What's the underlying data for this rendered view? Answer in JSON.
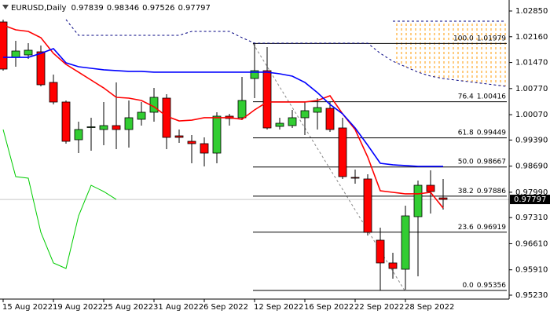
{
  "chart_data": {
    "type": "candlestick",
    "title": "EURUSD,Daily",
    "categories": [
      "15 Aug 2022",
      null,
      null,
      null,
      "19 Aug 2022",
      null,
      null,
      null,
      "25 Aug 2022",
      null,
      null,
      null,
      "31 Aug 2022",
      null,
      null,
      null,
      "6 Sep 2022",
      null,
      null,
      null,
      "12 Sep 2022",
      null,
      null,
      null,
      "16 Sep 2022",
      null,
      null,
      null,
      "22 Sep 2022",
      null,
      null,
      null,
      "28 Sep 2022",
      null,
      null,
      null,
      null,
      null,
      null,
      null,
      null
    ],
    "open": [
      1.02556,
      1.01608,
      1.01672,
      1.01756,
      1.00935,
      1.00409,
      0.99398,
      0.99735,
      0.99672,
      0.99777,
      0.99672,
      0.99946,
      1.00135,
      1.00514,
      0.99503,
      0.99356,
      0.99293,
      0.9904,
      1.0003,
      0.99988,
      1.0104,
      1.0125,
      0.99756,
      0.99777,
      0.99988,
      1.00135,
      1.0024,
      0.99714,
      0.98388,
      0.98346,
      0.96704,
      0.96094,
      0.95925,
      0.97335,
      0.98177,
      0.97839,
      null,
      null,
      null,
      null,
      null
    ],
    "high": [
      1.0262,
      1.0205,
      1.01987,
      1.01924,
      1.01145,
      1.00451,
      0.99882,
      0.99988,
      1.00409,
      1.00935,
      1.00451,
      1.00409,
      1.00787,
      1.00619,
      0.99672,
      0.99524,
      0.99461,
      1.00135,
      1.00093,
      1.01082,
      1.01987,
      1.01882,
      0.99988,
      1.00198,
      1.00409,
      1.00514,
      1.00409,
      0.99988,
      0.98599,
      0.98472,
      0.97041,
      0.96367,
      0.9763,
      0.98304,
      0.98578,
      0.98346,
      null,
      null,
      null,
      null,
      null
    ],
    "low": [
      1.0125,
      1.01356,
      1.01566,
      1.0083,
      1.00345,
      0.99293,
      0.9904,
      0.99103,
      0.99251,
      0.99146,
      0.99188,
      0.99777,
      0.99882,
      0.99146,
      0.99314,
      0.98767,
      0.98683,
      0.98767,
      0.99777,
      0.99925,
      1.00514,
      0.99672,
      0.99672,
      0.99714,
      0.99524,
      0.99672,
      0.99609,
      0.98346,
      0.9822,
      0.9683,
      0.95356,
      0.95672,
      0.95378,
      0.95735,
      0.9742,
      0.97526,
      null,
      null,
      null,
      null,
      null
    ],
    "close": [
      1.01293,
      1.01777,
      1.01798,
      1.00872,
      1.00409,
      0.99356,
      0.99672,
      0.99745,
      0.99777,
      0.99672,
      0.99988,
      1.00135,
      1.00535,
      0.99461,
      0.99461,
      0.99293,
      0.9904,
      1.0003,
      0.99967,
      1.00451,
      1.0125,
      0.99714,
      0.9984,
      0.99988,
      1.00177,
      1.00261,
      0.99672,
      0.98409,
      0.98367,
      0.96915,
      0.96094,
      0.95946,
      0.97356,
      0.98177,
      0.98009,
      0.97797,
      null,
      null,
      null,
      null,
      null
    ],
    "up_color": "#32cd32",
    "down_color": "#ff0000",
    "lines": [
      {
        "color": "#ff0000",
        "width": 1.6,
        "dash": null,
        "values": [
          1.02471,
          1.02345,
          1.02303,
          1.02135,
          1.01714,
          1.01419,
          1.01209,
          1.00998,
          1.00787,
          1.00535,
          1.00514,
          1.00451,
          1.00282,
          1.0003,
          0.99903,
          0.99924,
          0.99988,
          0.99988,
          0.99988,
          0.99946,
          1.00198,
          1.00409,
          1.00409,
          1.00409,
          1.00409,
          1.00451,
          1.00577,
          1.00093,
          0.99672,
          0.98935,
          0.9803,
          0.97988,
          0.97946,
          0.97946,
          0.97988,
          0.97567,
          null,
          null,
          null,
          null,
          null
        ]
      },
      {
        "color": "#0000ff",
        "width": 1.6,
        "dash": null,
        "values": [
          1.01608,
          1.01608,
          1.01608,
          1.01714,
          1.0184,
          1.01461,
          1.01356,
          1.01314,
          1.01272,
          1.01251,
          1.0123,
          1.0123,
          1.01209,
          1.01209,
          1.01209,
          1.01209,
          1.01209,
          1.01209,
          1.01209,
          1.01209,
          1.01209,
          1.01209,
          1.01166,
          1.01103,
          1.00935,
          1.00661,
          1.00345,
          1.00093,
          0.99714,
          0.99251,
          0.98767,
          0.98725,
          0.98704,
          0.98683,
          0.98683,
          0.98683,
          null,
          null,
          null,
          null,
          null
        ]
      },
      {
        "color": "#00cc00",
        "width": 1,
        "dash": null,
        "values": [
          0.99672,
          0.98409,
          0.98367,
          0.96915,
          0.96094,
          0.95946,
          0.97356,
          0.98177,
          0.98009,
          0.97797,
          null,
          null,
          null,
          null,
          null,
          null,
          null,
          null,
          null,
          null,
          null,
          null,
          null,
          null,
          null,
          null,
          null,
          null,
          null,
          null,
          null,
          null,
          null,
          null,
          null,
          null,
          null,
          null,
          null,
          null,
          null
        ]
      },
      {
        "color": "#000080",
        "width": 1,
        "dash": "3 3",
        "values": [
          null,
          null,
          null,
          null,
          null,
          1.02619,
          1.02198,
          1.02198,
          1.02198,
          1.02198,
          1.02198,
          1.02198,
          1.02198,
          1.02198,
          1.02198,
          1.02303,
          1.02303,
          1.02303,
          1.02303,
          1.02135,
          1.01987,
          1.01987,
          1.01987,
          1.01987,
          1.01987,
          1.01987,
          1.01987,
          1.01987,
          1.01987,
          1.01987,
          1.01714,
          1.01503,
          1.01356,
          1.01209,
          1.01103,
          1.0104,
          1.00998,
          1.00956,
          1.00914,
          1.00872,
          1.00829
        ]
      },
      {
        "color": "#000080",
        "width": 1,
        "dash": "3 3",
        "values": [
          null,
          null,
          null,
          null,
          null,
          null,
          null,
          null,
          null,
          null,
          null,
          null,
          null,
          null,
          null,
          null,
          null,
          null,
          null,
          null,
          null,
          null,
          null,
          null,
          null,
          null,
          null,
          null,
          null,
          null,
          null,
          1.02577,
          1.02577,
          1.02577,
          1.02577,
          1.02577,
          1.02577,
          1.02577,
          1.02577,
          1.02577,
          1.02577
        ]
      }
    ],
    "cloud": {
      "color": "#ff9900",
      "between": [
        3,
        4
      ]
    },
    "fibonacci": [
      {
        "label": "100.0",
        "value": 1.01979
      },
      {
        "label": "76.4",
        "value": 1.00416
      },
      {
        "label": "61.8",
        "value": 0.99449
      },
      {
        "label": "50.0",
        "value": 0.98667
      },
      {
        "label": "38.2",
        "value": 0.97886
      },
      {
        "label": "23.6",
        "value": 0.96919
      },
      {
        "label": "0.0",
        "value": 0.95356
      }
    ],
    "ylim": [
      0.95125,
      1.03145
    ],
    "yticks": [
      {
        "value": 1.0285,
        "label": "1.02850"
      },
      {
        "value": 1.0216,
        "label": "1.02160"
      },
      {
        "value": 1.0147,
        "label": "1.01470"
      },
      {
        "value": 1.0077,
        "label": "1.00770"
      },
      {
        "value": 1.0007,
        "label": "1.00070"
      },
      {
        "value": 0.9939,
        "label": "0.99390"
      },
      {
        "value": 0.9869,
        "label": "0.98690"
      },
      {
        "value": 0.9799,
        "label": "0.97990"
      },
      {
        "value": 0.9731,
        "label": "0.97310"
      },
      {
        "value": 0.9661,
        "label": "0.96610"
      },
      {
        "value": 0.9591,
        "label": "0.95910"
      },
      {
        "value": 0.9523,
        "label": "0.95230"
      }
    ]
  }
}
